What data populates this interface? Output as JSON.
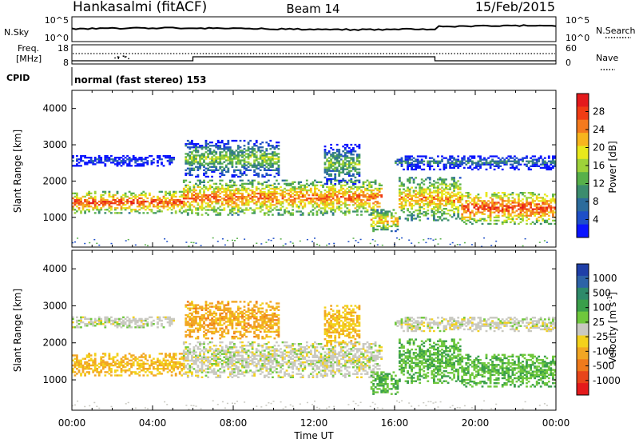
{
  "header": {
    "station": "Hankasalmi (fitACF)",
    "beam": "Beam 14",
    "date": "15/Feb/2015"
  },
  "noise_panel": {
    "left_label": "N.Sky",
    "left_ticks": [
      "10^5",
      "10^0"
    ],
    "right_ticks": [
      "10^5",
      "10^0"
    ],
    "right_label": "N.Search",
    "right_legend_style": "dotted"
  },
  "freq_panel": {
    "left_label_1": "Freq.",
    "left_label_2": "[MHz]",
    "left_ticks": [
      "18",
      "8"
    ],
    "right_ticks": [
      "60",
      "0"
    ],
    "right_label": "Nave",
    "right_legend_style": "dotted"
  },
  "cpid_panel": {
    "label": "CPID",
    "text": "normal (fast stereo) 153"
  },
  "power_panel": {
    "ylabel": "Slant Range [km]",
    "yticks": [
      "4000",
      "3000",
      "2000",
      "1000"
    ],
    "colorbar_label": "Power [dB]",
    "colorbar_ticks": [
      "28",
      "24",
      "20",
      "16",
      "12",
      "8",
      "4"
    ],
    "colorbar_colors": [
      "#e41a1c",
      "#f03c14",
      "#f47a1e",
      "#f7b51d",
      "#e8e81c",
      "#9ed23a",
      "#57b04a",
      "#3b8d6e",
      "#2c6c9c",
      "#1e4fc8",
      "#0a14ff"
    ]
  },
  "velocity_panel": {
    "ylabel": "Slant Range [km]",
    "yticks": [
      "4000",
      "3000",
      "2000",
      "1000"
    ],
    "colorbar_label": "Velocity [m s",
    "colorbar_label_sup": "-1",
    "colorbar_label_end": "]",
    "colorbar_ticks": [
      "1000",
      "500",
      "100",
      "25",
      "-25",
      "-100",
      "-500",
      "-1000"
    ],
    "colorbar_colors": [
      "#1f3fa8",
      "#2d63a7",
      "#2e8a6a",
      "#3a9f4a",
      "#6fc83c",
      "#c9c9c1",
      "#f3d11c",
      "#f2a623",
      "#ef7a1b",
      "#e8451a",
      "#e41a1c"
    ]
  },
  "time_axis": {
    "ticks": [
      "00:00",
      "04:00",
      "08:00",
      "12:00",
      "16:00",
      "20:00",
      "00:00"
    ],
    "label": "Time UT"
  },
  "chart_data": {
    "type": "heatmap",
    "x_range_hours": [
      0,
      24
    ],
    "y_range_km": [
      180,
      4500
    ],
    "power_range_db": [
      0,
      30
    ],
    "velocity_range_ms": [
      -1000,
      1000
    ],
    "channel_switch_hours": [
      6.0,
      18.0
    ],
    "echo_bands": [
      {
        "t_start": 0.0,
        "t_end": 5.5,
        "range_km": [
          1100,
          1700
        ],
        "power_db": 26,
        "velocity_ms": -300
      },
      {
        "t_start": 5.5,
        "t_end": 15.3,
        "range_km": [
          1050,
          2000
        ],
        "power_db": 24,
        "velocity_ms": 0
      },
      {
        "t_start": 14.8,
        "t_end": 16.2,
        "range_km": [
          600,
          1200
        ],
        "power_db": 22,
        "velocity_ms": 250
      },
      {
        "t_start": 16.2,
        "t_end": 19.3,
        "range_km": [
          900,
          2100
        ],
        "power_db": 22,
        "velocity_ms": 250
      },
      {
        "t_start": 19.3,
        "t_end": 24.0,
        "range_km": [
          800,
          1700
        ],
        "power_db": 26,
        "velocity_ms": 250
      },
      {
        "t_start": 0.0,
        "t_end": 5.0,
        "range_km": [
          2400,
          2700
        ],
        "power_db": 6,
        "velocity_ms": 0
      },
      {
        "t_start": 5.6,
        "t_end": 10.2,
        "range_km": [
          2100,
          3100
        ],
        "power_db": 15,
        "velocity_ms": -350
      },
      {
        "t_start": 12.5,
        "t_end": 14.2,
        "range_km": [
          1900,
          3000
        ],
        "power_db": 14,
        "velocity_ms": -250
      },
      {
        "t_start": 16.0,
        "t_end": 24.0,
        "range_km": [
          2300,
          2700
        ],
        "power_db": 9,
        "velocity_ms": 0
      }
    ]
  }
}
